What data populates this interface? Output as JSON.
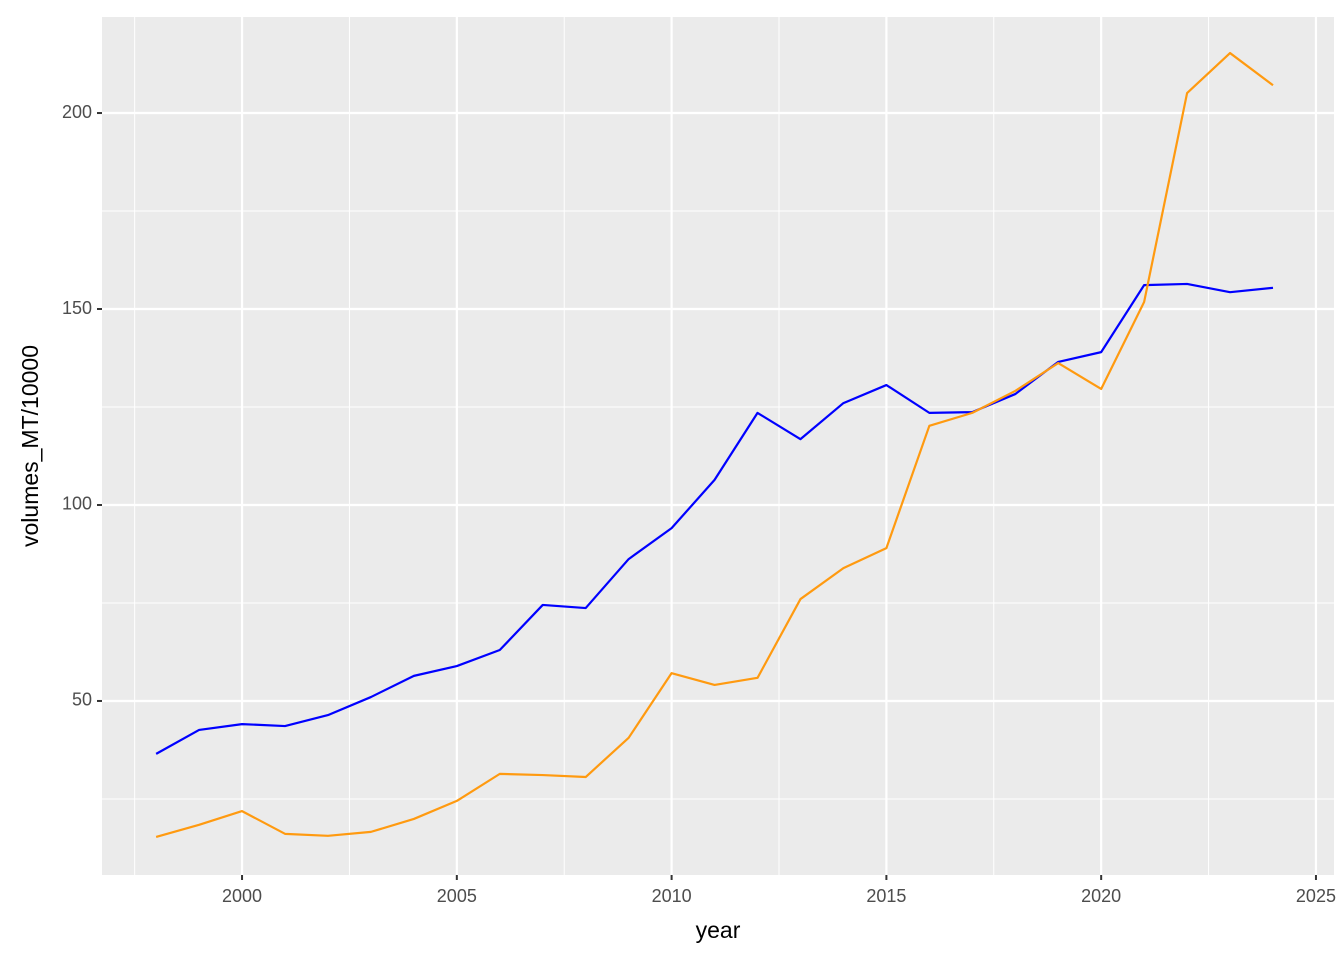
{
  "chart_data": {
    "type": "line",
    "x_label": "year",
    "y_label": "volumes_MT/10000",
    "x": [
      1998,
      1999,
      2000,
      2001,
      2002,
      2003,
      2004,
      2005,
      2006,
      2007,
      2008,
      2009,
      2010,
      2011,
      2012,
      2013,
      2014,
      2015,
      2016,
      2017,
      2018,
      2019,
      2020,
      2021,
      2022,
      2023,
      2024
    ],
    "series": [
      {
        "color": "#0000ff",
        "values": [
          36.5,
          42.6,
          44.1,
          43.6,
          46.4,
          51.0,
          56.4,
          58.9,
          63.0,
          74.5,
          73.7,
          86.2,
          94.1,
          106.4,
          123.5,
          116.8,
          126.0,
          130.6,
          123.5,
          123.7,
          128.3,
          136.5,
          139.0,
          156.1,
          156.4,
          154.3,
          155.4
        ]
      },
      {
        "color": "#ff9a10",
        "values": [
          15.3,
          18.4,
          21.9,
          16.1,
          15.6,
          16.6,
          19.9,
          24.5,
          31.4,
          31.1,
          30.6,
          40.6,
          57.1,
          54.1,
          55.9,
          76.0,
          83.9,
          89.0,
          120.2,
          123.5,
          129.1,
          136.2,
          129.6,
          151.8,
          205.1,
          215.3,
          207.1
        ]
      }
    ],
    "xlim": [
      1996.74,
      2025.42
    ],
    "xticks": [
      2000,
      2005,
      2010,
      2015,
      2020,
      2025
    ],
    "ylim": [
      5.6,
      224.5
    ],
    "yticks": [
      50,
      100,
      150,
      200
    ],
    "grid": true
  }
}
